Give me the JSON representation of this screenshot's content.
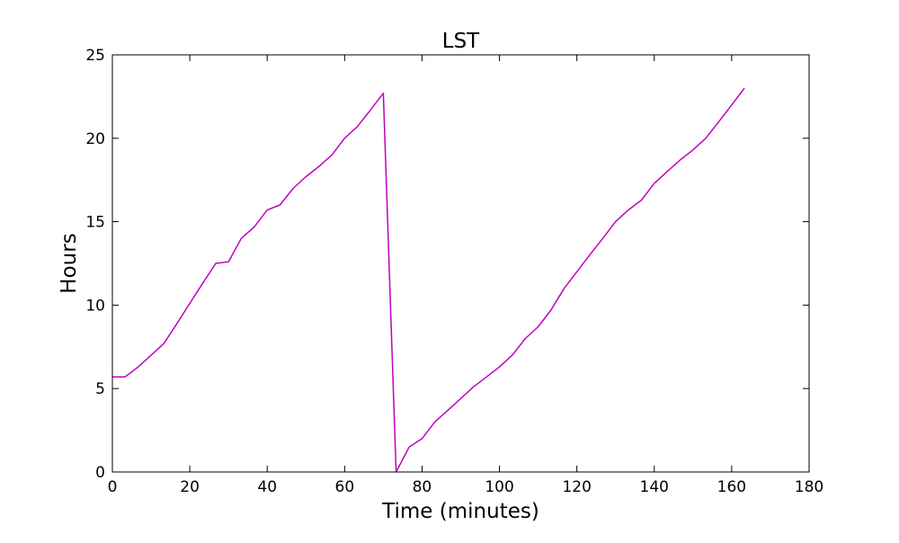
{
  "chart_data": {
    "type": "line",
    "title": "LST",
    "xlabel": "Time (minutes)",
    "ylabel": "Hours",
    "xlim": [
      0,
      180
    ],
    "ylim": [
      0,
      25
    ],
    "xticks": [
      0,
      20,
      40,
      60,
      80,
      100,
      120,
      140,
      160,
      180
    ],
    "yticks": [
      0,
      5,
      10,
      15,
      20,
      25
    ],
    "grid": false,
    "series": [
      {
        "color": "#c000c0",
        "x": [
          0,
          3.3,
          6.7,
          10,
          13.3,
          16.7,
          20,
          23.3,
          26.7,
          30,
          33.3,
          36.7,
          40,
          43.3,
          46.7,
          50,
          53.3,
          56.7,
          60,
          63.3,
          66.7,
          70,
          73.3,
          76.7,
          80,
          83.3,
          86.7,
          90,
          93.3,
          96.7,
          100,
          103.3,
          106.7,
          110,
          113.3,
          116.7,
          120,
          123.3,
          126.7,
          130,
          133.3,
          136.7,
          140,
          143.3,
          146.7,
          150,
          153.3,
          156.7,
          160,
          163.3
        ],
        "y": [
          5.7,
          5.7,
          6.3,
          7.0,
          7.7,
          8.9,
          10.1,
          11.3,
          12.5,
          12.6,
          14.0,
          14.7,
          15.7,
          16.0,
          17.0,
          17.7,
          18.3,
          19.0,
          20.0,
          20.7,
          21.7,
          22.7,
          0.0,
          1.5,
          2.0,
          3.0,
          3.7,
          4.4,
          5.1,
          5.7,
          6.3,
          7.0,
          8.0,
          8.7,
          9.7,
          11.0,
          12.0,
          13.0,
          14.0,
          15.0,
          15.7,
          16.3,
          17.3,
          18.0,
          18.7,
          19.3,
          20.0,
          21.0,
          22.0,
          23.0
        ]
      }
    ]
  }
}
